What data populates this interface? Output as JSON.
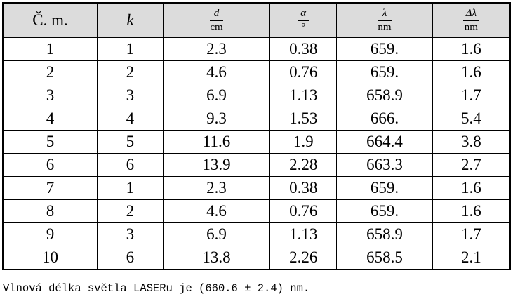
{
  "table": {
    "header": [
      {
        "text": "Č. m."
      },
      {
        "text": "k",
        "italic": true
      },
      {
        "num": "d",
        "den": "cm"
      },
      {
        "num": "α",
        "den": "°"
      },
      {
        "num": "λ",
        "den": "nm"
      },
      {
        "num": "Δλ",
        "den": "nm"
      }
    ],
    "rows": [
      [
        "1",
        "1",
        "2.3",
        "0.38",
        "659.",
        "1.6"
      ],
      [
        "2",
        "2",
        "4.6",
        "0.76",
        "659.",
        "1.6"
      ],
      [
        "3",
        "3",
        "6.9",
        "1.13",
        "658.9",
        "1.7"
      ],
      [
        "4",
        "4",
        "9.3",
        "1.53",
        "666.",
        "5.4"
      ],
      [
        "5",
        "5",
        "11.6",
        "1.9",
        "664.4",
        "3.8"
      ],
      [
        "6",
        "6",
        "13.9",
        "2.28",
        "663.3",
        "2.7"
      ],
      [
        "7",
        "1",
        "2.3",
        "0.38",
        "659.",
        "1.6"
      ],
      [
        "8",
        "2",
        "4.6",
        "0.76",
        "659.",
        "1.6"
      ],
      [
        "9",
        "3",
        "6.9",
        "1.13",
        "658.9",
        "1.7"
      ],
      [
        "10",
        "6",
        "13.8",
        "2.26",
        "658.5",
        "2.1"
      ]
    ]
  },
  "footer": "Vlnová délka světla LASERu je (660.6 ± 2.4) nm."
}
